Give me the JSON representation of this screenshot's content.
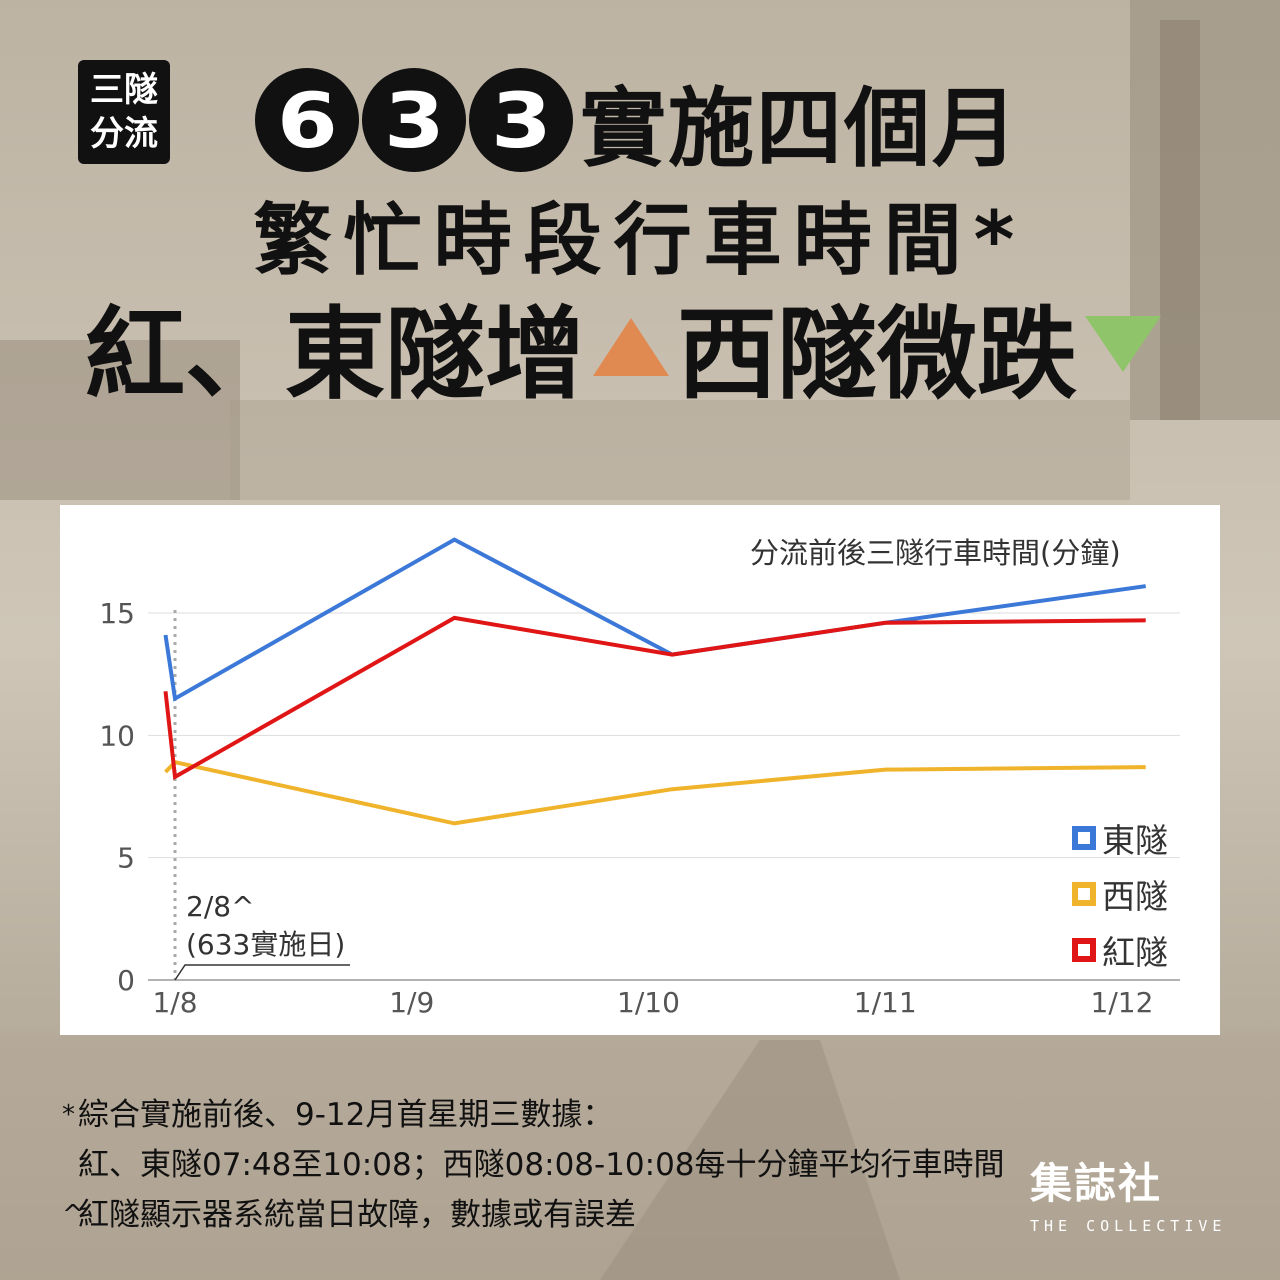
{
  "tag": {
    "line1": "三隧",
    "line2": "分流"
  },
  "headline": {
    "digits": [
      "6",
      "3",
      "3"
    ],
    "line1_text": "實施四個月",
    "line2": "繁忙時段行車時間*",
    "line3_part1": "紅、東隧增",
    "line3_part2": "西隧微跌"
  },
  "colors": {
    "east": "#3b78d8",
    "west": "#f0b32c",
    "red": "#e01515",
    "up_triangle": "#e08a52",
    "down_triangle": "#8fc46a"
  },
  "annotation": {
    "line1": "2/8^",
    "line2": "(633實施日)"
  },
  "legend": [
    {
      "label": "東隧",
      "color": "#3b78d8"
    },
    {
      "label": "西隧",
      "color": "#f0b32c"
    },
    {
      "label": "紅隧",
      "color": "#e01515"
    }
  ],
  "chart_data": {
    "type": "line",
    "title": "分流前後三隧行車時間(分鐘)",
    "xlabel": "",
    "ylabel": "",
    "x_ticks": [
      "1/8",
      "1/9",
      "1/10",
      "1/11",
      "1/12"
    ],
    "y_ticks": [
      0,
      5,
      10,
      15
    ],
    "ylim": [
      0,
      18
    ],
    "grid": true,
    "legend_position": "right",
    "series": [
      {
        "name": "東隧",
        "color": "#3b78d8",
        "x": [
          7.96,
          8.0,
          9.18,
          10.1,
          11.0,
          12.1
        ],
        "y": [
          14.1,
          11.5,
          18.0,
          13.3,
          14.6,
          16.1
        ]
      },
      {
        "name": "西隧",
        "color": "#f0b32c",
        "x": [
          7.96,
          8.0,
          9.18,
          10.1,
          11.0,
          12.1
        ],
        "y": [
          8.5,
          8.9,
          6.4,
          7.8,
          8.6,
          8.7
        ]
      },
      {
        "name": "紅隧",
        "color": "#e01515",
        "x": [
          7.96,
          8.0,
          9.18,
          10.1,
          11.0,
          12.1
        ],
        "y": [
          11.8,
          8.3,
          14.8,
          13.3,
          14.6,
          14.7
        ]
      }
    ],
    "marker_x": 8.0
  },
  "footnotes": {
    "mark1": "*",
    "line1": "綜合實施前後、9-12月首星期三數據：",
    "line2": "紅、東隧07:48至10:08；西隧08:08-10:08每十分鐘平均行車時間",
    "mark2": "^",
    "line3": "紅隧顯示器系統當日故障，數據或有誤差"
  },
  "brand": {
    "name": "集誌社",
    "sub": "THE COLLECTIVE"
  }
}
